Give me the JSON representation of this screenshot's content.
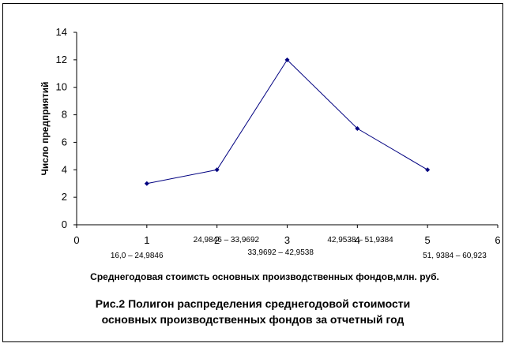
{
  "chart_data": {
    "type": "line",
    "x": [
      1,
      2,
      3,
      4,
      5
    ],
    "values": [
      3,
      4,
      12,
      7,
      4
    ],
    "xlim": [
      0,
      6
    ],
    "ylim": [
      0,
      14
    ],
    "x_ticks": [
      "0",
      "1",
      "2",
      "3",
      "4",
      "5",
      "6"
    ],
    "y_ticks": [
      "0",
      "2",
      "4",
      "6",
      "8",
      "10",
      "12",
      "14"
    ],
    "interval_labels": [
      "16,0 – 24,9846",
      "24,9846 – 33,9692",
      "33,9692 – 42,9538",
      "42,9538 – 51,9384",
      "51, 9384 – 60,923"
    ],
    "ylabel": "Число предприятий",
    "xlabel": "Среднегодовая стоимсть основных производственных фондов,млн. руб.",
    "series_color": "#000080",
    "grid": false,
    "legend": false
  },
  "caption": {
    "line1": "Рис.2 Полигон распределения среднегодовой стоимости",
    "line2": "основных производственных фондов за отчетный год"
  }
}
